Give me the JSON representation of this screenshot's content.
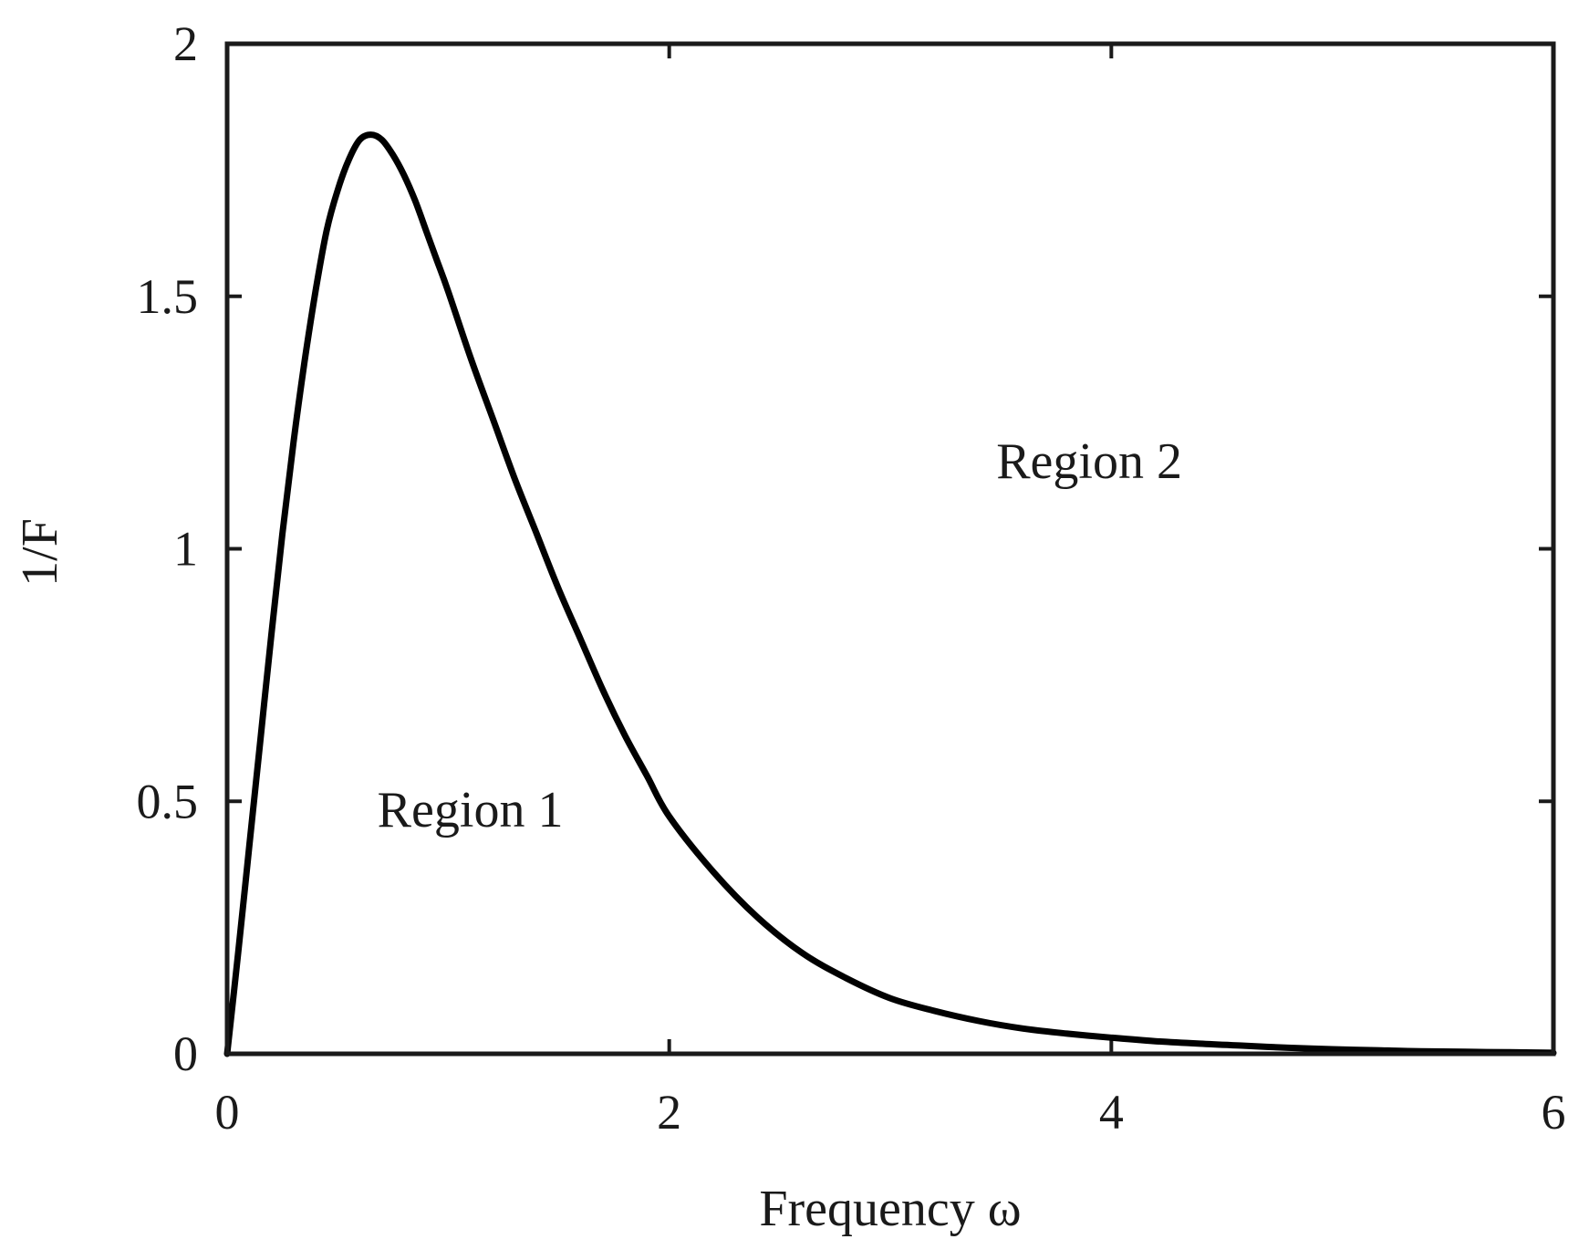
{
  "chart_data": {
    "type": "line",
    "title": "",
    "xlabel": "Frequency ω",
    "ylabel": "1/F",
    "xlim": [
      0,
      6
    ],
    "ylim": [
      0,
      2
    ],
    "xticks": [
      0,
      2,
      4,
      6
    ],
    "xtick_labels": [
      "0",
      "2",
      "4",
      "6"
    ],
    "yticks": [
      0,
      0.5,
      1,
      1.5,
      2
    ],
    "ytick_labels": [
      "0",
      "0.5",
      "1",
      "1.5",
      "2"
    ],
    "grid": false,
    "legend": "none",
    "series": [
      {
        "color": "#000000",
        "x": [
          0,
          0.05,
          0.1,
          0.15,
          0.2,
          0.25,
          0.3,
          0.35,
          0.4,
          0.45,
          0.5,
          0.55,
          0.6,
          0.65,
          0.7,
          0.75,
          0.8,
          0.85,
          0.9,
          0.95,
          1.0,
          1.1,
          1.2,
          1.3,
          1.4,
          1.5,
          1.6,
          1.7,
          1.8,
          1.9,
          2.0,
          2.2,
          2.4,
          2.6,
          2.8,
          3.0,
          3.2,
          3.4,
          3.6,
          3.8,
          4.0,
          4.2,
          4.4,
          4.6,
          4.8,
          5.0,
          5.2,
          5.4,
          5.6,
          5.8,
          6.0
        ],
        "y": [
          0,
          0.2,
          0.41,
          0.62,
          0.83,
          1.03,
          1.21,
          1.37,
          1.51,
          1.63,
          1.71,
          1.77,
          1.81,
          1.82,
          1.81,
          1.78,
          1.74,
          1.69,
          1.63,
          1.57,
          1.51,
          1.38,
          1.26,
          1.14,
          1.03,
          0.92,
          0.82,
          0.72,
          0.63,
          0.55,
          0.47,
          0.36,
          0.27,
          0.2,
          0.15,
          0.11,
          0.085,
          0.065,
          0.05,
          0.04,
          0.032,
          0.025,
          0.02,
          0.016,
          0.012,
          0.009,
          0.007,
          0.005,
          0.004,
          0.003,
          0.002
        ]
      }
    ],
    "annotations": [
      {
        "text": "Region 1",
        "x": 1.1,
        "y": 0.45
      },
      {
        "text": "Region 2",
        "x": 3.9,
        "y": 1.14
      }
    ]
  }
}
